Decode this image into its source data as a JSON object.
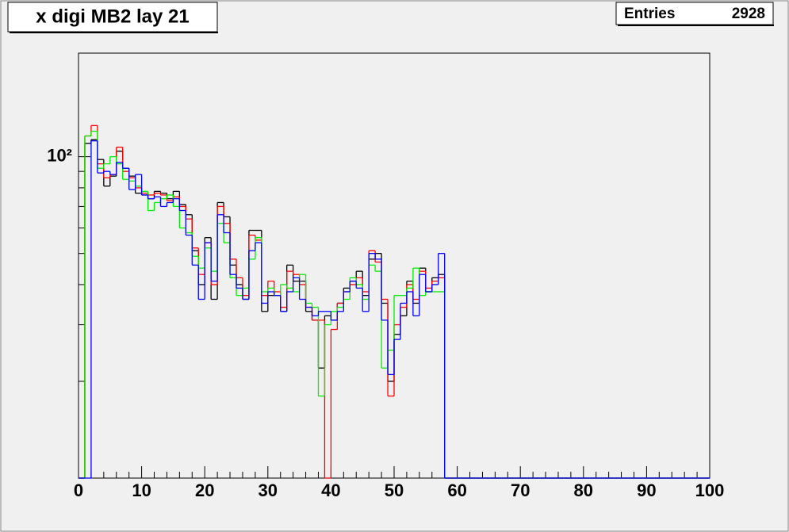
{
  "chart_data": {
    "type": "histogram",
    "title": "x digi MB2 lay 21",
    "stats": {
      "label": "Entries",
      "value": 2928
    },
    "log_y": true,
    "bins": [
      0,
      1,
      2,
      3,
      4,
      5,
      6,
      7,
      8,
      9,
      10,
      11,
      12,
      13,
      14,
      15,
      16,
      17,
      18,
      19,
      20,
      21,
      22,
      23,
      24,
      25,
      26,
      27,
      28,
      29,
      30,
      31,
      32,
      33,
      34,
      35,
      36,
      37,
      38,
      39,
      40,
      41,
      42,
      43,
      44,
      45,
      46,
      47,
      48,
      49,
      50,
      51,
      52,
      53,
      54,
      55,
      56,
      57,
      58,
      59,
      60,
      61,
      62,
      63,
      64,
      65,
      66,
      67,
      68,
      69,
      70,
      71,
      72,
      73,
      74,
      75,
      76,
      77,
      78,
      79,
      80,
      81,
      82,
      83,
      84,
      85,
      86,
      87,
      88,
      89,
      90,
      91,
      92,
      93,
      94,
      95,
      96,
      97,
      98,
      99,
      100
    ],
    "xlim": [
      0,
      100
    ],
    "xticks": [
      0,
      10,
      20,
      30,
      40,
      50,
      60,
      70,
      80,
      90,
      100
    ],
    "xminorticks": [
      2,
      4,
      6,
      8,
      12,
      14,
      16,
      18,
      22,
      24,
      26,
      28,
      32,
      34,
      36,
      38,
      42,
      44,
      46,
      48,
      52,
      54,
      56,
      58,
      62,
      64,
      66,
      68,
      72,
      74,
      76,
      78,
      82,
      84,
      86,
      88,
      92,
      94,
      96,
      98
    ],
    "ylim": [
      10,
      210
    ],
    "yticks": [
      {
        "value": 100,
        "label": "10²"
      }
    ],
    "yminorticks": [
      20,
      30,
      40,
      50,
      60,
      70,
      80,
      90
    ],
    "series": [
      {
        "color": "#000000",
        "values": [
          0,
          110,
          113,
          98,
          81,
          87,
          104,
          92,
          87,
          77,
          76,
          74,
          78,
          77,
          74,
          78,
          71,
          66,
          51,
          40,
          56,
          36,
          72,
          65,
          46,
          40,
          36,
          59,
          59,
          33,
          37,
          37,
          33,
          46,
          41,
          41,
          33,
          31,
          22,
          32,
          31,
          35,
          39,
          41,
          44,
          37,
          48,
          50,
          35,
          20,
          28,
          32,
          41,
          35,
          45,
          38,
          42,
          43,
          0,
          0,
          0,
          0,
          0,
          0,
          0,
          0,
          0,
          0,
          0,
          0,
          0,
          0,
          0,
          0,
          0,
          0,
          0,
          0,
          0,
          0,
          0,
          0,
          0,
          0,
          0,
          0,
          0,
          0,
          0,
          0,
          0,
          0,
          0,
          0,
          0,
          0,
          0,
          0,
          0,
          0
        ]
      },
      {
        "color": "#ff0000",
        "values": [
          0,
          116,
          125,
          95,
          86,
          88,
          107,
          90,
          86,
          80,
          77,
          76,
          77,
          76,
          73,
          75,
          70,
          64,
          52,
          43,
          54,
          40,
          70,
          62,
          48,
          42,
          37,
          57,
          55,
          37,
          41,
          38,
          34,
          44,
          43,
          40,
          34,
          31,
          31,
          0,
          29,
          35,
          38,
          40,
          42,
          38,
          51,
          47,
          36,
          18,
          30,
          34,
          40,
          36,
          44,
          39,
          41,
          42,
          0,
          0,
          0,
          0,
          0,
          0,
          0,
          0,
          0,
          0,
          0,
          0,
          0,
          0,
          0,
          0,
          0,
          0,
          0,
          0,
          0,
          0,
          0,
          0,
          0,
          0,
          0,
          0,
          0,
          0,
          0,
          0,
          0,
          0,
          0,
          0,
          0,
          0,
          0,
          0,
          0,
          0
        ]
      },
      {
        "color": "#00ee00",
        "values": [
          0,
          116,
          120,
          92,
          95,
          100,
          95,
          85,
          84,
          81,
          78,
          68,
          72,
          74,
          76,
          70,
          60,
          58,
          49,
          45,
          52,
          44,
          62,
          54,
          42,
          37,
          39,
          48,
          56,
          38,
          39,
          37,
          40,
          39,
          38,
          43,
          35,
          34,
          18,
          30,
          33,
          34,
          36,
          42,
          40,
          36,
          46,
          44,
          22,
          25,
          37,
          37,
          39,
          45,
          37,
          38,
          38,
          38,
          0,
          0,
          0,
          0,
          0,
          0,
          0,
          0,
          0,
          0,
          0,
          0,
          0,
          0,
          0,
          0,
          0,
          0,
          0,
          0,
          0,
          0,
          0,
          0,
          0,
          0,
          0,
          0,
          0,
          0,
          0,
          0,
          0,
          0,
          0,
          0,
          0,
          0,
          0,
          0,
          0,
          0
        ]
      },
      {
        "color": "#0000ff",
        "values": [
          0,
          0,
          112,
          89,
          90,
          88,
          96,
          92,
          79,
          88,
          76,
          74,
          75,
          70,
          72,
          74,
          68,
          57,
          46,
          36,
          54,
          41,
          66,
          58,
          43,
          39,
          36,
          51,
          54,
          35,
          38,
          37,
          33,
          38,
          42,
          36,
          34,
          32,
          33,
          33,
          31,
          33,
          38,
          41,
          39,
          33,
          50,
          48,
          31,
          21,
          27,
          35,
          38,
          32,
          43,
          38,
          40,
          50,
          0,
          0,
          0,
          0,
          0,
          0,
          0,
          0,
          0,
          0,
          0,
          0,
          0,
          0,
          0,
          0,
          0,
          0,
          0,
          0,
          0,
          0,
          0,
          0,
          0,
          0,
          0,
          0,
          0,
          0,
          0,
          0,
          0,
          0,
          0,
          0,
          0,
          0,
          0,
          0,
          0,
          0
        ]
      }
    ]
  }
}
